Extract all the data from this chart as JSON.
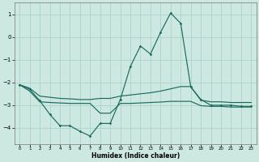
{
  "xlabel": "Humidex (Indice chaleur)",
  "bg_color": "#cce8e0",
  "line_color": "#1a6b5e",
  "grid_color": "#aad4cc",
  "xlim": [
    -0.5,
    23.5
  ],
  "ylim": [
    -4.7,
    1.5
  ],
  "yticks": [
    1,
    0,
    -1,
    -2,
    -3,
    -4
  ],
  "xticks": [
    0,
    1,
    2,
    3,
    4,
    5,
    6,
    7,
    8,
    9,
    10,
    11,
    12,
    13,
    14,
    15,
    16,
    17,
    18,
    19,
    20,
    21,
    22,
    23
  ],
  "y_main": [
    -2.1,
    -2.3,
    -2.8,
    -3.4,
    -3.9,
    -3.9,
    -4.15,
    -4.35,
    -3.8,
    -3.8,
    -2.75,
    -1.3,
    -0.4,
    -0.75,
    0.2,
    1.05,
    0.6,
    -2.2,
    -2.75,
    -3.0,
    -3.0,
    -3.0,
    -3.05,
    -3.05
  ],
  "y_upper": [
    -2.1,
    -2.25,
    -2.6,
    -2.65,
    -2.7,
    -2.72,
    -2.75,
    -2.75,
    -2.7,
    -2.7,
    -2.6,
    -2.55,
    -2.5,
    -2.45,
    -2.38,
    -2.28,
    -2.18,
    -2.18,
    -2.78,
    -2.85,
    -2.85,
    -2.88,
    -2.88,
    -2.88
  ],
  "y_lower": [
    -2.1,
    -2.38,
    -2.85,
    -2.88,
    -2.9,
    -2.92,
    -2.92,
    -2.92,
    -3.35,
    -3.35,
    -2.92,
    -2.92,
    -2.9,
    -2.88,
    -2.86,
    -2.83,
    -2.83,
    -2.83,
    -3.02,
    -3.05,
    -3.05,
    -3.08,
    -3.08,
    -3.08
  ],
  "x": [
    0,
    1,
    2,
    3,
    4,
    5,
    6,
    7,
    8,
    9,
    10,
    11,
    12,
    13,
    14,
    15,
    16,
    17,
    18,
    19,
    20,
    21,
    22,
    23
  ]
}
